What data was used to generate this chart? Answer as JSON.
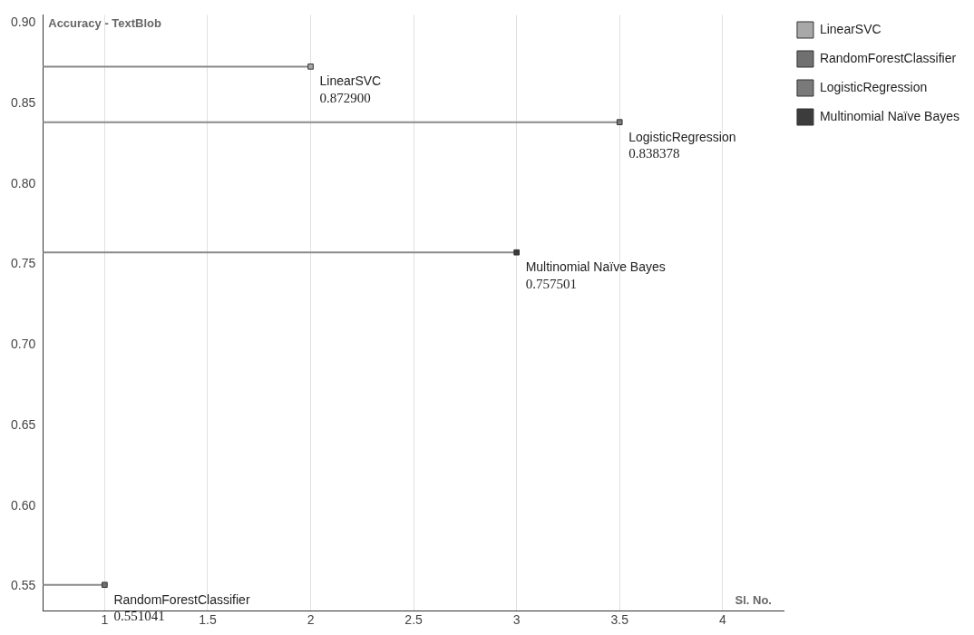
{
  "chart_data": {
    "type": "scatter",
    "title": "Accuracy - TextBlob",
    "xlabel": "Sl. No.",
    "xlim": [
      0.7,
      4.3
    ],
    "xticks": [
      1,
      1.5,
      2,
      2.5,
      3,
      3.5,
      4
    ],
    "ylim": [
      0.535,
      0.905
    ],
    "yticks": [
      {
        "value": 0.55,
        "label": "0.55"
      },
      {
        "value": 0.6,
        "label": "0.60"
      },
      {
        "value": 0.65,
        "label": "0.65"
      },
      {
        "value": 0.7,
        "label": "0.70"
      },
      {
        "value": 0.75,
        "label": "0.75"
      },
      {
        "value": 0.8,
        "label": "0.80"
      },
      {
        "value": 0.85,
        "label": "0.85"
      },
      {
        "value": 0.9,
        "label": "0.90"
      }
    ],
    "grid": "x",
    "legend": "top right",
    "marker": "square",
    "series": [
      {
        "name": "LinearSVC",
        "color": "#a8a8a8",
        "x": [
          2
        ],
        "values": [
          0.8729
        ],
        "value_labels": [
          "0.872900"
        ]
      },
      {
        "name": "RandomForestClassifier",
        "color": "#707070",
        "x": [
          1
        ],
        "values": [
          0.551041
        ],
        "value_labels": [
          "0.551041"
        ]
      },
      {
        "name": "LogisticRegression",
        "color": "#7a7a7a",
        "x": [
          3.5
        ],
        "values": [
          0.838378
        ],
        "value_labels": [
          "0.838378"
        ]
      },
      {
        "name": "Multinomial Naïve Bayes",
        "color": "#3c3c3c",
        "x": [
          3
        ],
        "values": [
          0.757501
        ],
        "value_labels": [
          "0.757501"
        ]
      }
    ]
  }
}
